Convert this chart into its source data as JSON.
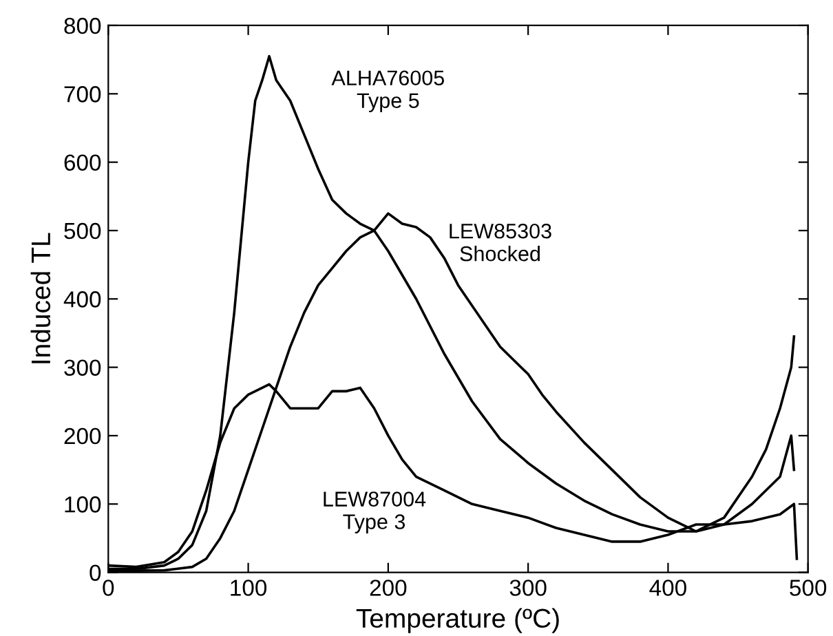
{
  "chart_data": {
    "type": "line",
    "xlabel": "Temperature (ºC)",
    "ylabel": "Induced TL",
    "xlim": [
      0,
      500
    ],
    "ylim": [
      0,
      800
    ],
    "xticks": [
      0,
      100,
      200,
      300,
      400,
      500
    ],
    "yticks": [
      0,
      100,
      200,
      300,
      400,
      500,
      600,
      700,
      800
    ],
    "grid": false,
    "legend": false,
    "marker": "none",
    "line_style": "solid",
    "series": [
      {
        "color": "#000000",
        "x": [
          0,
          20,
          40,
          50,
          60,
          70,
          80,
          90,
          100,
          105,
          110,
          115,
          120,
          130,
          140,
          150,
          160,
          170,
          180,
          190,
          200,
          220,
          240,
          260,
          280,
          300,
          320,
          340,
          360,
          380,
          400,
          420,
          440,
          460,
          480,
          488,
          490
        ],
        "values": [
          5,
          5,
          10,
          20,
          40,
          90,
          200,
          380,
          600,
          690,
          720,
          755,
          720,
          690,
          640,
          590,
          545,
          525,
          510,
          500,
          470,
          400,
          320,
          250,
          195,
          160,
          130,
          105,
          85,
          70,
          60,
          60,
          70,
          100,
          140,
          200,
          150
        ]
      },
      {
        "color": "#000000",
        "x": [
          0,
          40,
          60,
          70,
          80,
          90,
          100,
          110,
          120,
          130,
          140,
          150,
          160,
          170,
          180,
          190,
          200,
          210,
          220,
          230,
          240,
          250,
          260,
          270,
          280,
          290,
          300,
          310,
          320,
          340,
          360,
          380,
          400,
          420,
          440,
          460,
          470,
          480,
          488,
          490
        ],
        "values": [
          2,
          3,
          8,
          20,
          50,
          90,
          150,
          210,
          270,
          330,
          380,
          420,
          445,
          470,
          490,
          500,
          525,
          510,
          505,
          490,
          460,
          420,
          390,
          360,
          330,
          310,
          290,
          260,
          235,
          190,
          150,
          110,
          80,
          60,
          80,
          140,
          180,
          240,
          300,
          345
        ]
      },
      {
        "color": "#000000",
        "x": [
          0,
          20,
          40,
          50,
          60,
          70,
          80,
          90,
          100,
          110,
          115,
          120,
          130,
          140,
          150,
          160,
          170,
          180,
          190,
          200,
          210,
          220,
          240,
          260,
          280,
          300,
          320,
          340,
          360,
          380,
          400,
          420,
          440,
          460,
          480,
          490,
          492
        ],
        "values": [
          10,
          8,
          15,
          30,
          60,
          120,
          190,
          240,
          260,
          270,
          275,
          265,
          240,
          240,
          240,
          265,
          265,
          270,
          240,
          200,
          165,
          140,
          120,
          100,
          90,
          80,
          65,
          55,
          45,
          45,
          55,
          70,
          70,
          75,
          85,
          100,
          20
        ]
      }
    ],
    "annotations": [
      "ALHA76005\nType 5",
      "LEW85303\nShocked",
      "LEW87004\nType 3"
    ]
  }
}
